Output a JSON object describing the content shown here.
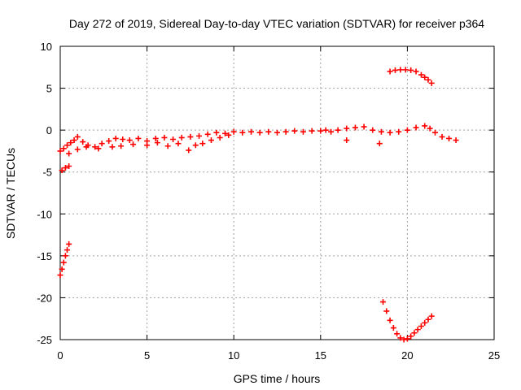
{
  "chart_data": {
    "type": "scatter",
    "title": "Day 272 of 2019, Sidereal Day-to-day VTEC variation (SDTVAR) for receiver p364",
    "xlabel": "GPS time / hours",
    "ylabel": "SDTVAR / TECUs",
    "xlim": [
      0,
      25
    ],
    "ylim": [
      -25,
      10
    ],
    "xticks": [
      0,
      5,
      10,
      15,
      20,
      25
    ],
    "yticks": [
      -25,
      -20,
      -15,
      -10,
      -5,
      0,
      5,
      10
    ],
    "grid": true,
    "marker": "+",
    "color": "#ff0000",
    "segments": [
      {
        "name": "main-band",
        "x": [
          0.0,
          0.2,
          0.4,
          0.6,
          0.8,
          1.0,
          1.3,
          1.6,
          2.0,
          2.4,
          2.8,
          3.2,
          3.6,
          4.0,
          4.5,
          5.0,
          5.5,
          6.0,
          6.5,
          7.0,
          7.5,
          8.0,
          8.5,
          9.0,
          9.5,
          10.0,
          10.5,
          11.0,
          11.5,
          12.0,
          12.5,
          13.0,
          13.5,
          14.0,
          14.5,
          15.0,
          15.3,
          15.6,
          16.0,
          16.5,
          17.0,
          17.5,
          18.0,
          18.5,
          19.0,
          19.5,
          20.0,
          20.5,
          21.0,
          21.3,
          21.6,
          22.0,
          22.4,
          22.8
        ],
        "y": [
          -2.5,
          -2.2,
          -1.8,
          -1.5,
          -1.2,
          -0.8,
          -1.4,
          -1.8,
          -2.0,
          -1.6,
          -1.3,
          -1.0,
          -1.1,
          -1.2,
          -1.0,
          -1.3,
          -1.0,
          -0.9,
          -1.1,
          -0.9,
          -0.8,
          -0.7,
          -0.5,
          -0.3,
          -0.4,
          -0.2,
          -0.3,
          -0.2,
          -0.3,
          -0.2,
          -0.3,
          -0.2,
          -0.1,
          -0.2,
          -0.1,
          -0.1,
          0.0,
          -0.2,
          0.0,
          0.2,
          0.3,
          0.4,
          0.0,
          -0.2,
          -0.3,
          -0.2,
          0.0,
          0.3,
          0.5,
          0.2,
          -0.3,
          -0.8,
          -1.0,
          -1.2
        ]
      },
      {
        "name": "main-band-lower",
        "x": [
          0.5,
          1.0,
          1.5,
          2.2,
          3.0,
          3.5,
          4.2,
          5.0,
          5.6,
          6.2,
          6.8,
          7.4,
          7.8,
          8.2,
          8.7,
          9.2,
          9.7
        ],
        "y": [
          -2.8,
          -2.3,
          -2.0,
          -2.2,
          -2.0,
          -1.9,
          -1.7,
          -1.8,
          -1.5,
          -1.9,
          -1.6,
          -2.4,
          -1.8,
          -1.6,
          -1.2,
          -0.9,
          -0.6
        ]
      },
      {
        "name": "upper-right-arc",
        "x": [
          19.0,
          19.3,
          19.6,
          19.9,
          20.2,
          20.5,
          20.8,
          21.0,
          21.2,
          21.4
        ],
        "y": [
          7.0,
          7.15,
          7.2,
          7.2,
          7.15,
          7.0,
          6.6,
          6.3,
          6.0,
          5.6
        ]
      },
      {
        "name": "lower-right-v",
        "x": [
          18.6,
          18.8,
          19.0,
          19.2,
          19.4,
          19.6,
          19.8,
          20.0,
          20.2,
          20.4,
          20.6,
          20.8,
          21.0,
          21.2,
          21.4
        ],
        "y": [
          -20.5,
          -21.6,
          -22.7,
          -23.6,
          -24.3,
          -24.8,
          -25.0,
          -24.9,
          -24.6,
          -24.2,
          -23.8,
          -23.4,
          -23.0,
          -22.6,
          -22.2
        ]
      },
      {
        "name": "lower-left-line",
        "x": [
          0.0,
          0.1,
          0.2,
          0.3,
          0.4,
          0.5
        ],
        "y": [
          -17.3,
          -16.6,
          -15.8,
          -15.0,
          -14.3,
          -13.6
        ]
      },
      {
        "name": "small-cluster",
        "x": [
          0.1,
          0.3,
          0.5
        ],
        "y": [
          -4.8,
          -4.5,
          -4.3
        ]
      },
      {
        "name": "isolated-points",
        "x": [
          16.5,
          18.4
        ],
        "y": [
          -1.2,
          -1.6
        ]
      }
    ]
  }
}
